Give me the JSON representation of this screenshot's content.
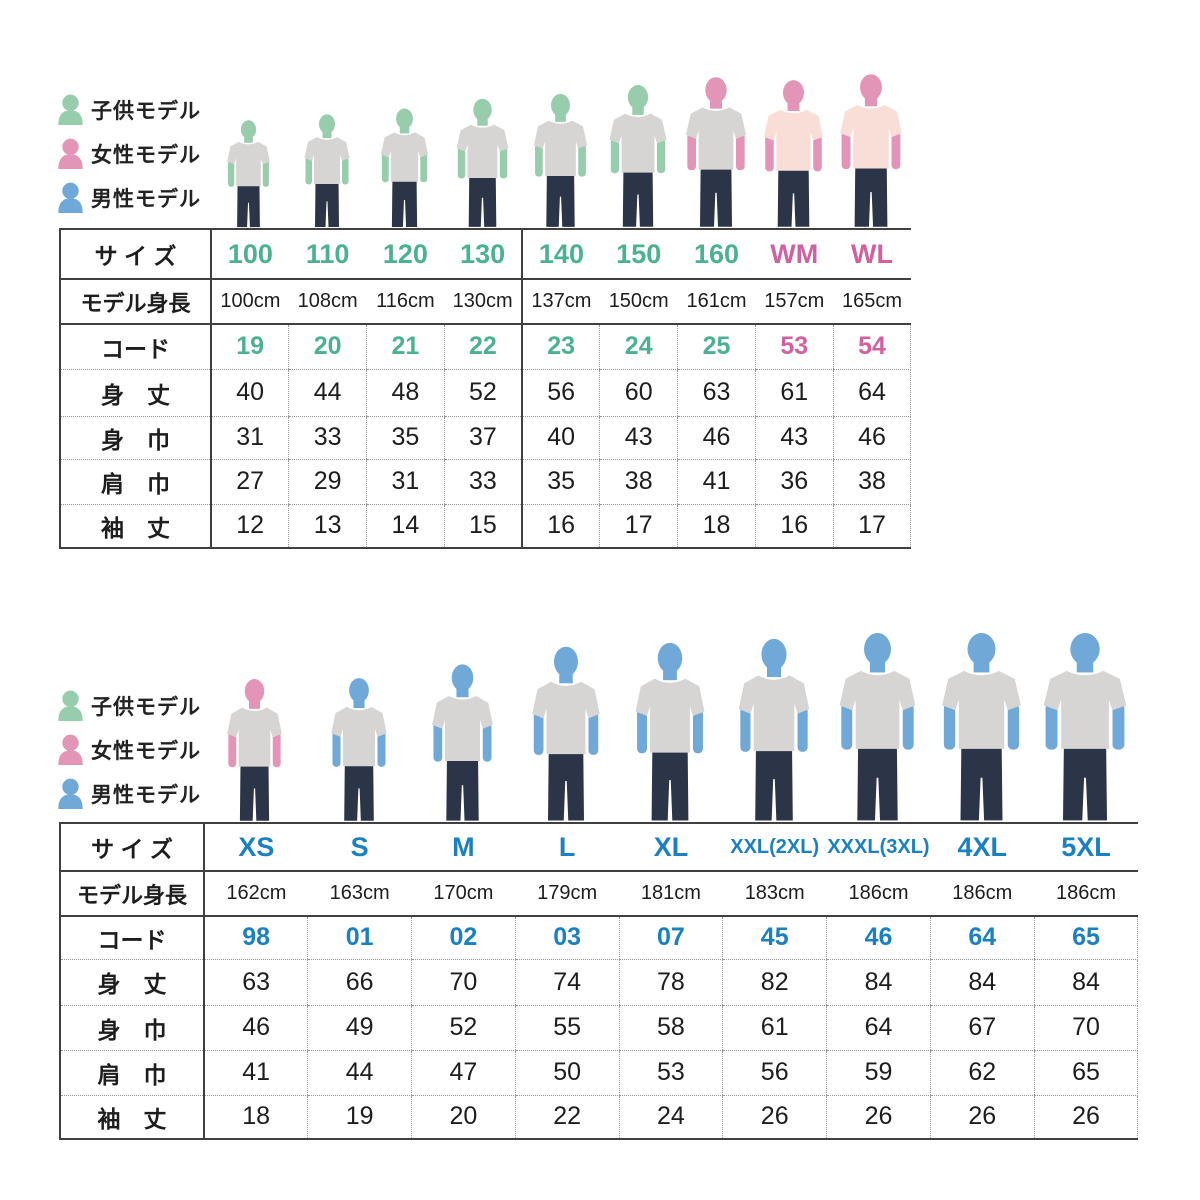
{
  "legend": {
    "items": [
      {
        "id": "child",
        "label": "子供モデル"
      },
      {
        "id": "woman",
        "label": "女性モデル"
      },
      {
        "id": "man",
        "label": "男性モデル"
      }
    ]
  },
  "colors": {
    "child_body": "#97cdac",
    "woman_body": "#e295b6",
    "man_body": "#70a9d7",
    "child_accent": "#4bb192",
    "woman_accent": "#d0609f",
    "man_accent": "#1b80c0",
    "shirt_gray": "#d6d5d3",
    "shirt_pink": "#f9ded8",
    "jeans": "#2c3547",
    "solid_line": "#404040",
    "dotted_line": "#979797",
    "text": "#1d1d1d"
  },
  "row_labels": {
    "size": "サ イ ズ",
    "model_height": "モデル身長",
    "code": "コード",
    "body_length": "身　丈",
    "body_width": "身　巾",
    "shoulder_width": "肩　巾",
    "sleeve_length": "袖　丈"
  },
  "chart_data": [
    {
      "type": "table",
      "id": "kids-women",
      "row_headers": [
        "サイズ",
        "モデル身長",
        "コード",
        "身丈",
        "身巾",
        "肩巾",
        "袖丈"
      ],
      "columns": [
        {
          "size": "100",
          "accent": "child",
          "model": "child",
          "shirt": "gray",
          "model_height": "100cm",
          "height_cm": 100,
          "code": "19",
          "body_length": 40,
          "body_width": 31,
          "shoulder_width": 27,
          "sleeve_length": 12
        },
        {
          "size": "110",
          "accent": "child",
          "model": "child",
          "shirt": "gray",
          "model_height": "108cm",
          "height_cm": 108,
          "code": "20",
          "body_length": 44,
          "body_width": 33,
          "shoulder_width": 29,
          "sleeve_length": 13
        },
        {
          "size": "120",
          "accent": "child",
          "model": "child",
          "shirt": "gray",
          "model_height": "116cm",
          "height_cm": 116,
          "code": "21",
          "body_length": 48,
          "body_width": 35,
          "shoulder_width": 31,
          "sleeve_length": 14
        },
        {
          "size": "130",
          "accent": "child",
          "model": "child",
          "shirt": "gray",
          "model_height": "130cm",
          "height_cm": 130,
          "code": "22",
          "body_length": 52,
          "body_width": 37,
          "shoulder_width": 33,
          "sleeve_length": 15
        },
        {
          "size": "140",
          "accent": "child",
          "model": "child",
          "shirt": "gray",
          "model_height": "137cm",
          "height_cm": 137,
          "code": "23",
          "body_length": 56,
          "body_width": 40,
          "shoulder_width": 35,
          "sleeve_length": 16
        },
        {
          "size": "150",
          "accent": "child",
          "model": "child",
          "shirt": "gray",
          "model_height": "150cm",
          "height_cm": 150,
          "code": "24",
          "body_length": 60,
          "body_width": 43,
          "shoulder_width": 38,
          "sleeve_length": 17
        },
        {
          "size": "160",
          "accent": "child",
          "model": "woman",
          "shirt": "gray",
          "model_height": "161cm",
          "height_cm": 161,
          "code": "25",
          "body_length": 63,
          "body_width": 46,
          "shoulder_width": 41,
          "sleeve_length": 18
        },
        {
          "size": "WM",
          "accent": "woman",
          "model": "woman",
          "shirt": "pink",
          "model_height": "157cm",
          "height_cm": 157,
          "code": "53",
          "body_length": 61,
          "body_width": 43,
          "shoulder_width": 36,
          "sleeve_length": 16
        },
        {
          "size": "WL",
          "accent": "woman",
          "model": "woman",
          "shirt": "pink",
          "model_height": "165cm",
          "height_cm": 165,
          "code": "54",
          "body_length": 64,
          "body_width": 46,
          "shoulder_width": 38,
          "sleeve_length": 17
        }
      ]
    },
    {
      "type": "table",
      "id": "adults",
      "row_headers": [
        "サイズ",
        "モデル身長",
        "コード",
        "身丈",
        "身巾",
        "肩巾",
        "袖丈"
      ],
      "columns": [
        {
          "size": "XS",
          "accent": "man",
          "model": "woman",
          "shirt": "gray",
          "model_height": "162cm",
          "height_cm": 162,
          "code": "98",
          "body_length": 63,
          "body_width": 46,
          "shoulder_width": 41,
          "sleeve_length": 18
        },
        {
          "size": "S",
          "accent": "man",
          "model": "man",
          "shirt": "gray",
          "model_height": "163cm",
          "height_cm": 163,
          "code": "01",
          "body_length": 66,
          "body_width": 49,
          "shoulder_width": 44,
          "sleeve_length": 19
        },
        {
          "size": "M",
          "accent": "man",
          "model": "man",
          "shirt": "gray",
          "model_height": "170cm",
          "height_cm": 170,
          "code": "02",
          "body_length": 70,
          "body_width": 52,
          "shoulder_width": 47,
          "sleeve_length": 20
        },
        {
          "size": "L",
          "accent": "man",
          "model": "man",
          "shirt": "gray",
          "model_height": "179cm",
          "height_cm": 179,
          "code": "03",
          "body_length": 74,
          "body_width": 55,
          "shoulder_width": 50,
          "sleeve_length": 22
        },
        {
          "size": "XL",
          "accent": "man",
          "model": "man",
          "shirt": "gray",
          "model_height": "181cm",
          "height_cm": 181,
          "code": "07",
          "body_length": 78,
          "body_width": 58,
          "shoulder_width": 53,
          "sleeve_length": 24
        },
        {
          "size": "XXL(2XL)",
          "accent": "man",
          "model": "man",
          "shirt": "gray",
          "model_height": "183cm",
          "height_cm": 183,
          "code": "45",
          "body_length": 82,
          "body_width": 61,
          "shoulder_width": 56,
          "sleeve_length": 26
        },
        {
          "size": "XXXL(3XL)",
          "accent": "man",
          "model": "man",
          "shirt": "gray",
          "model_height": "186cm",
          "height_cm": 186,
          "code": "46",
          "body_length": 84,
          "body_width": 64,
          "shoulder_width": 59,
          "sleeve_length": 26
        },
        {
          "size": "4XL",
          "accent": "man",
          "model": "man",
          "shirt": "gray",
          "model_height": "186cm",
          "height_cm": 186,
          "code": "64",
          "body_length": 84,
          "body_width": 67,
          "shoulder_width": 62,
          "sleeve_length": 26
        },
        {
          "size": "5XL",
          "accent": "man",
          "model": "man",
          "shirt": "gray",
          "model_height": "186cm",
          "height_cm": 186,
          "code": "65",
          "body_length": 84,
          "body_width": 70,
          "shoulder_width": 65,
          "sleeve_length": 26
        }
      ]
    }
  ]
}
